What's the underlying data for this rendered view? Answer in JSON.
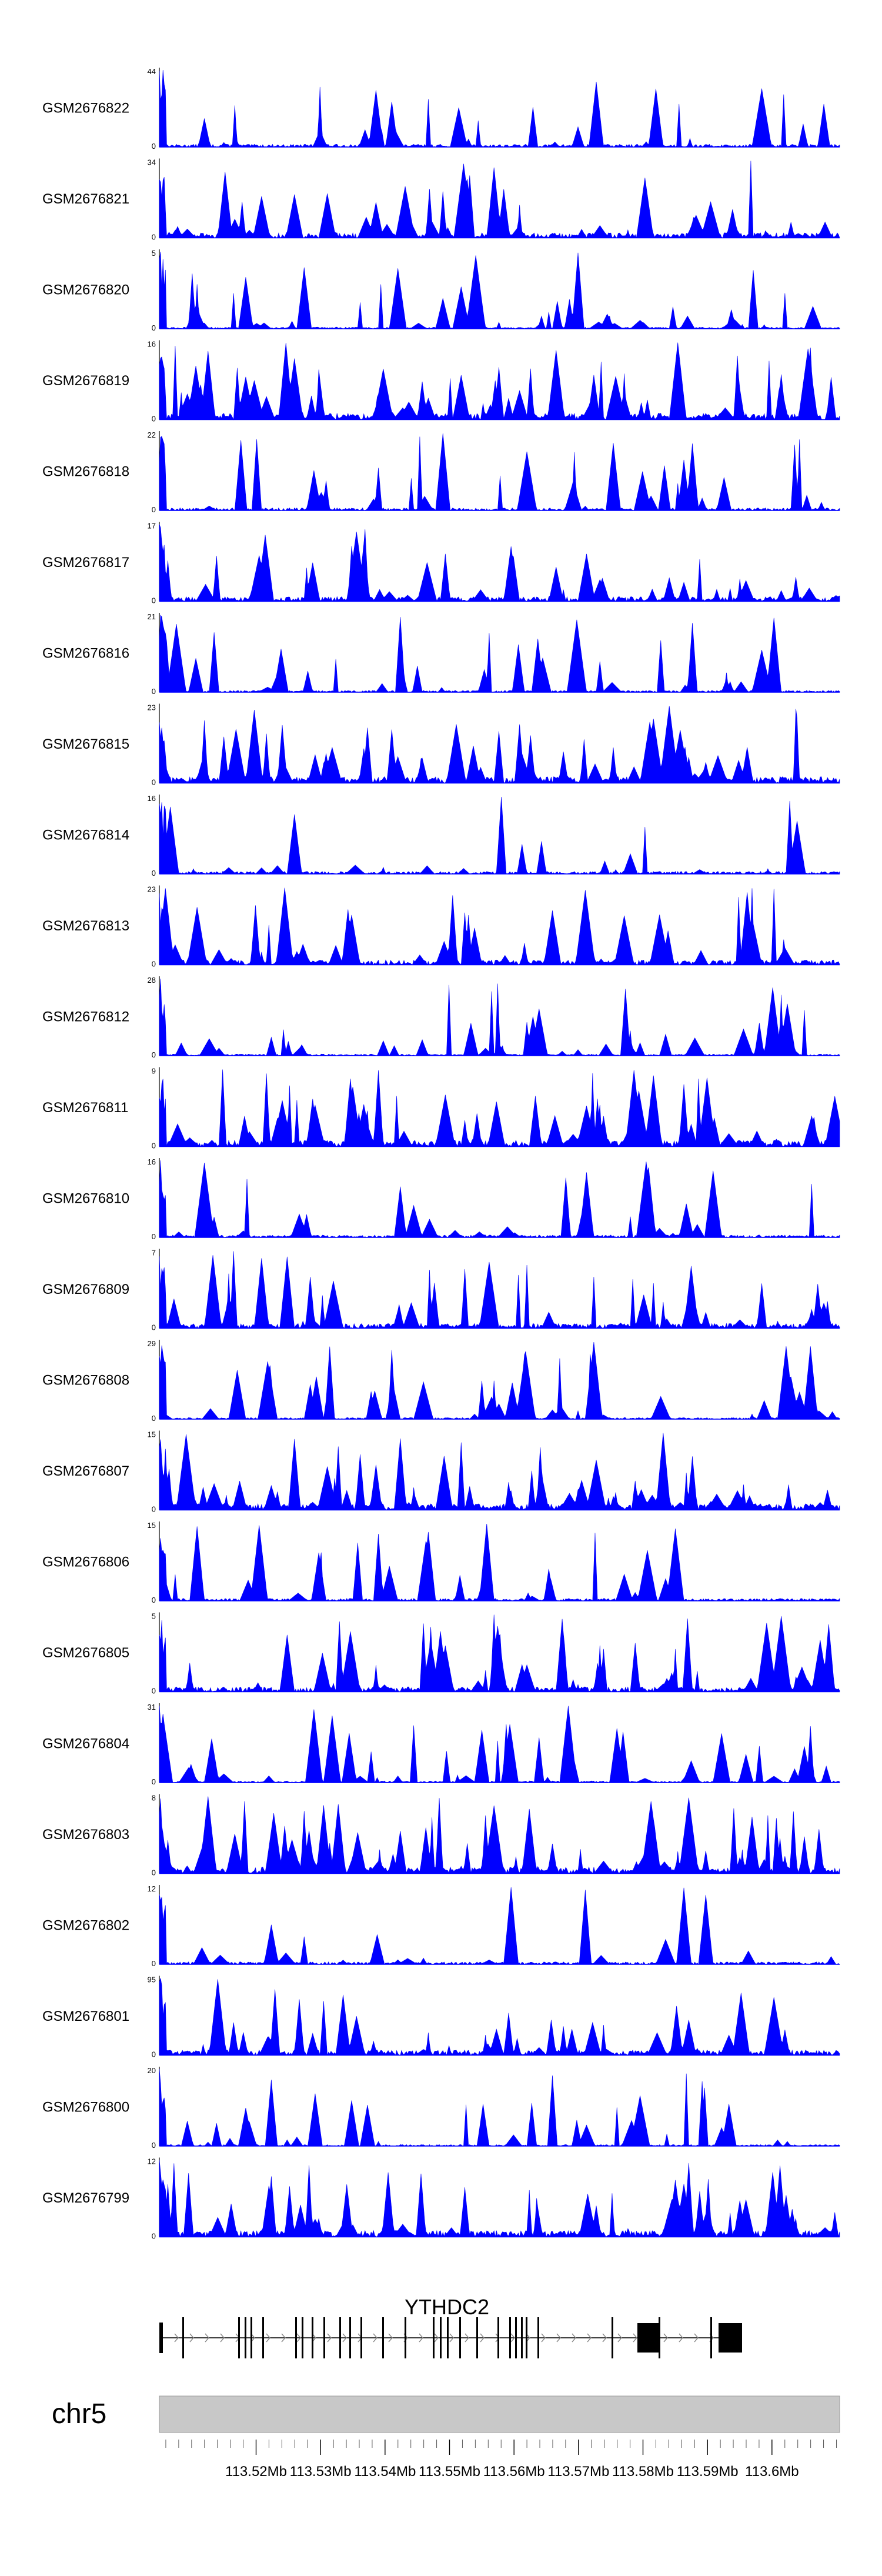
{
  "chart_data": {
    "type": "area",
    "chromosome": "chr5",
    "gene": {
      "name": "YTHDC2",
      "strand": "+"
    },
    "x_range_mb": [
      113.505,
      113.6105
    ],
    "x_ticks_mb": [
      113.52,
      113.53,
      113.54,
      113.55,
      113.56,
      113.57,
      113.58,
      113.59,
      113.6
    ],
    "x_tick_labels": [
      "113.52Mb",
      "113.53Mb",
      "113.54Mb",
      "113.55Mb",
      "113.56Mb",
      "113.57Mb",
      "113.58Mb",
      "113.59Mb",
      "113.6Mb"
    ],
    "tracks": [
      {
        "name": "GSM2676822",
        "ymax": "44",
        "ymin": "0"
      },
      {
        "name": "GSM2676821",
        "ymax": "34",
        "ymin": "0"
      },
      {
        "name": "GSM2676820",
        "ymax": "5",
        "ymin": "0"
      },
      {
        "name": "GSM2676819",
        "ymax": "16",
        "ymin": "0"
      },
      {
        "name": "GSM2676818",
        "ymax": "22",
        "ymin": "0"
      },
      {
        "name": "GSM2676817",
        "ymax": "17",
        "ymin": "0"
      },
      {
        "name": "GSM2676816",
        "ymax": "21",
        "ymin": "0"
      },
      {
        "name": "GSM2676815",
        "ymax": "23",
        "ymin": "0"
      },
      {
        "name": "GSM2676814",
        "ymax": "16",
        "ymin": "0"
      },
      {
        "name": "GSM2676813",
        "ymax": "23",
        "ymin": "0"
      },
      {
        "name": "GSM2676812",
        "ymax": "28",
        "ymin": "0"
      },
      {
        "name": "GSM2676811",
        "ymax": "9",
        "ymin": "0"
      },
      {
        "name": "GSM2676810",
        "ymax": "16",
        "ymin": "0"
      },
      {
        "name": "GSM2676809",
        "ymax": "7",
        "ymin": "0"
      },
      {
        "name": "GSM2676808",
        "ymax": "29",
        "ymin": "0"
      },
      {
        "name": "GSM2676807",
        "ymax": "15",
        "ymin": "0"
      },
      {
        "name": "GSM2676806",
        "ymax": "15",
        "ymin": "0"
      },
      {
        "name": "GSM2676805",
        "ymax": "5",
        "ymin": "0"
      },
      {
        "name": "GSM2676804",
        "ymax": "31",
        "ymin": "0"
      },
      {
        "name": "GSM2676803",
        "ymax": "8",
        "ymin": "0"
      },
      {
        "name": "GSM2676802",
        "ymax": "12",
        "ymin": "0"
      },
      {
        "name": "GSM2676801",
        "ymax": "95",
        "ymin": "0"
      },
      {
        "name": "GSM2676800",
        "ymax": "20",
        "ymin": "0"
      },
      {
        "name": "GSM2676799",
        "ymax": "12",
        "ymin": "0"
      }
    ],
    "colors": {
      "signal": "#0000ff",
      "gene": "#000000",
      "ideogram": "#c8c8c8"
    }
  }
}
